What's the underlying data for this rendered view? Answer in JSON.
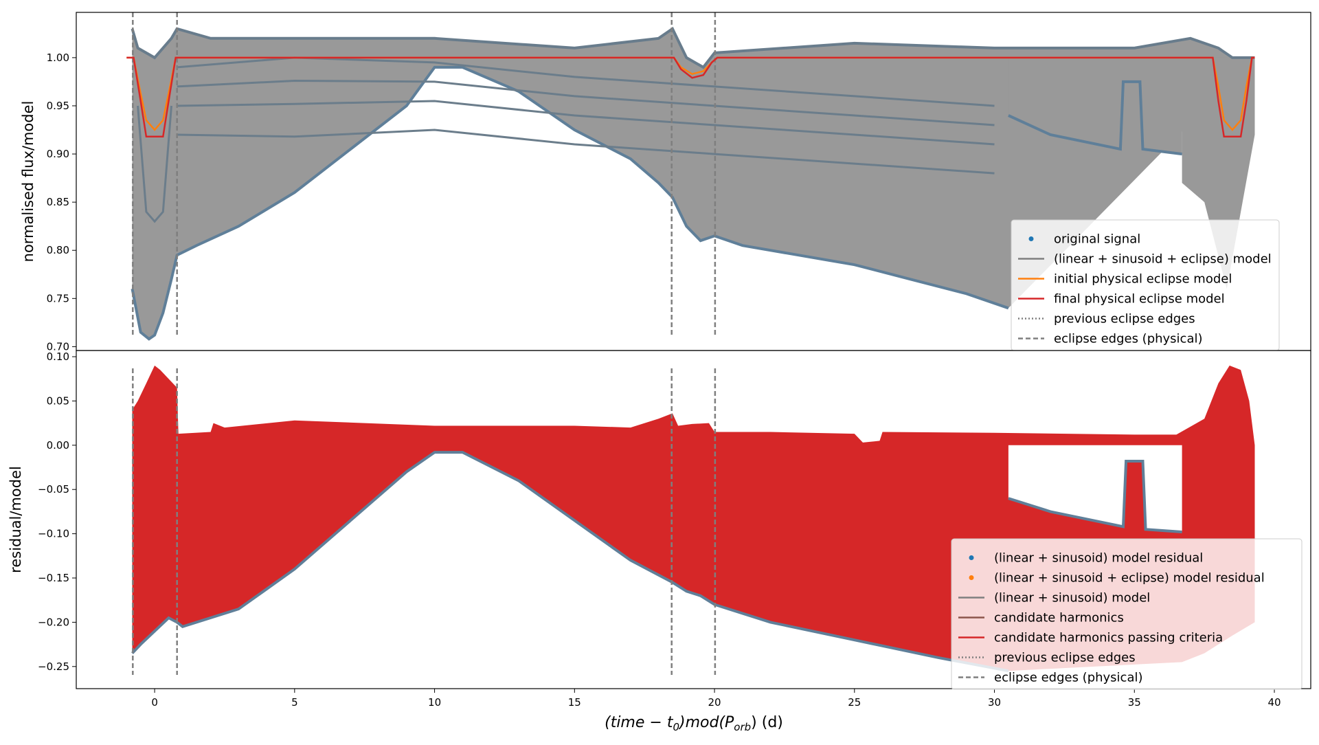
{
  "figure": {
    "xlabel_math": "(time − t",
    "xlabel_sub0": "0",
    "xlabel_mid": ")mod(P",
    "xlabel_sub1": "orb",
    "xlabel_tail": ") (d)"
  },
  "chart_data": [
    {
      "type": "line",
      "panel": "top",
      "ylabel": "normalised flux/model",
      "xlim": [
        -2.8,
        41.3
      ],
      "ylim": [
        0.696,
        1.047
      ],
      "xticks": [
        0,
        5,
        10,
        15,
        20,
        25,
        30,
        35,
        40
      ],
      "yticks": [
        0.7,
        0.75,
        0.8,
        0.85,
        0.9,
        0.95,
        1.0
      ],
      "ytick_labels": [
        "0.70",
        "0.75",
        "0.80",
        "0.85",
        "0.90",
        "0.95",
        "1.00"
      ],
      "legend_position": "lower right",
      "legend": [
        {
          "label": "original signal",
          "style": "dot",
          "color": "#1f77b4"
        },
        {
          "label": "(linear + sinusoid + eclipse) model",
          "style": "line",
          "color": "#7f7f7f"
        },
        {
          "label": "initial physical eclipse model",
          "style": "line",
          "color": "#ff7f0e"
        },
        {
          "label": "final physical eclipse model",
          "style": "line",
          "color": "#d62728"
        },
        {
          "label": "previous eclipse edges",
          "style": "dotted",
          "color": "#7f7f7f"
        },
        {
          "label": "eclipse edges (physical)",
          "style": "dashed",
          "color": "#7f7f7f"
        }
      ],
      "signal_lower_envelope": {
        "x": [
          -0.8,
          -0.5,
          -0.2,
          0.0,
          0.3,
          0.6,
          0.8,
          1.5,
          3.0,
          5.0,
          7.0,
          9.0,
          10.0,
          11.0,
          13.0,
          15.0,
          17.0,
          18.0,
          18.5,
          19.0,
          19.5,
          20.0,
          21.0,
          23.0,
          25.0,
          27.0,
          29.0,
          30.5
        ],
        "y": [
          0.76,
          0.715,
          0.708,
          0.712,
          0.735,
          0.77,
          0.795,
          0.805,
          0.825,
          0.86,
          0.905,
          0.95,
          0.99,
          0.99,
          0.965,
          0.925,
          0.895,
          0.87,
          0.855,
          0.825,
          0.81,
          0.815,
          0.805,
          0.795,
          0.785,
          0.77,
          0.755,
          0.74
        ]
      },
      "signal_lower_envelope_right": {
        "x": [
          30.5,
          32.0,
          34.5,
          34.6,
          35.2,
          35.3,
          36.7
        ],
        "y": [
          0.94,
          0.92,
          0.905,
          0.975,
          0.975,
          0.905,
          0.9
        ]
      },
      "signal_upper_envelope": {
        "x": [
          -0.8,
          -0.6,
          0.0,
          0.6,
          0.8,
          2.0,
          5.0,
          10.0,
          15.0,
          18.0,
          18.5,
          19.0,
          19.6,
          20.0,
          25.0,
          30.0,
          35.0,
          37.0,
          38.0,
          38.5,
          39.3
        ],
        "y": [
          1.03,
          1.01,
          1.0,
          1.02,
          1.03,
          1.02,
          1.02,
          1.02,
          1.01,
          1.02,
          1.03,
          1.0,
          0.99,
          1.005,
          1.015,
          1.01,
          1.01,
          1.02,
          1.01,
          1.0,
          1.0
        ]
      },
      "initial_eclipse_model": {
        "x": [
          -1.0,
          -0.75,
          -0.55,
          -0.3,
          0.0,
          0.3,
          0.55,
          0.75,
          1.0,
          18.4,
          18.55,
          18.8,
          19.2,
          19.6,
          19.9,
          20.1,
          37.6,
          37.8,
          38.0,
          38.2,
          38.5,
          38.8,
          39.0,
          39.2,
          39.3
        ],
        "y": [
          1.0,
          1.0,
          0.97,
          0.935,
          0.925,
          0.935,
          0.97,
          1.0,
          1.0,
          1.0,
          1.0,
          0.99,
          0.983,
          0.986,
          0.995,
          1.0,
          1.0,
          1.0,
          0.97,
          0.935,
          0.925,
          0.935,
          0.97,
          1.0,
          1.0
        ]
      },
      "final_eclipse_model": {
        "x": [
          -1.0,
          -0.75,
          -0.5,
          -0.3,
          0.0,
          0.3,
          0.5,
          0.75,
          1.0,
          18.4,
          18.55,
          18.8,
          19.2,
          19.6,
          19.9,
          20.1,
          37.6,
          37.8,
          38.0,
          38.2,
          38.5,
          38.8,
          39.0,
          39.2,
          39.3
        ],
        "y": [
          1.0,
          1.0,
          0.955,
          0.918,
          0.918,
          0.918,
          0.955,
          1.0,
          1.0,
          1.0,
          1.0,
          0.988,
          0.979,
          0.982,
          0.995,
          1.0,
          1.0,
          1.0,
          0.955,
          0.918,
          0.918,
          0.918,
          0.955,
          1.0,
          1.0
        ]
      },
      "eclipse_edges_physical": [
        -0.78,
        0.8,
        18.47,
        20.02
      ]
    },
    {
      "type": "line",
      "panel": "bottom",
      "ylabel": "residual/model",
      "xlim": [
        -2.8,
        41.3
      ],
      "ylim": [
        -0.275,
        0.107
      ],
      "xticks": [
        0,
        5,
        10,
        15,
        20,
        25,
        30,
        35,
        40
      ],
      "xtick_labels": [
        "0",
        "5",
        "10",
        "15",
        "20",
        "25",
        "30",
        "35",
        "40"
      ],
      "yticks": [
        -0.25,
        -0.2,
        -0.15,
        -0.1,
        -0.05,
        0.0,
        0.05,
        0.1
      ],
      "ytick_labels": [
        "−0.25",
        "−0.20",
        "−0.15",
        "−0.10",
        "−0.05",
        "0.00",
        "0.05",
        "0.10"
      ],
      "legend_position": "lower right",
      "legend": [
        {
          "label": "(linear + sinusoid) model residual",
          "style": "dot",
          "color": "#1f77b4"
        },
        {
          "label": "(linear + sinusoid + eclipse) model residual",
          "style": "dot",
          "color": "#ff7f0e"
        },
        {
          "label": "(linear + sinusoid) model",
          "style": "line",
          "color": "#7f7f7f"
        },
        {
          "label": "candidate harmonics",
          "style": "line",
          "color": "#8c564b"
        },
        {
          "label": "candidate harmonics passing criteria",
          "style": "line",
          "color": "#d62728"
        },
        {
          "label": "previous eclipse edges",
          "style": "dotted",
          "color": "#7f7f7f"
        },
        {
          "label": "eclipse edges (physical)",
          "style": "dashed",
          "color": "#7f7f7f"
        }
      ],
      "residual_upper_envelope": {
        "x": [
          -0.8,
          -0.6,
          -0.3,
          0.0,
          0.2,
          0.5,
          0.8,
          0.85,
          2.0,
          2.1,
          2.5,
          5.0,
          10.0,
          15.0,
          17.0,
          18.0,
          18.5,
          18.7,
          19.2,
          19.8,
          20.0,
          22.0,
          25.0,
          25.3,
          25.9,
          26.0,
          30.0,
          35.0,
          36.5,
          37.5,
          38.0,
          38.4,
          38.8,
          39.1,
          39.3
        ],
        "y": [
          0.04,
          0.05,
          0.07,
          0.09,
          0.085,
          0.075,
          0.065,
          0.013,
          0.015,
          0.025,
          0.02,
          0.028,
          0.022,
          0.022,
          0.02,
          0.03,
          0.036,
          0.022,
          0.024,
          0.025,
          0.015,
          0.015,
          0.013,
          0.003,
          0.005,
          0.015,
          0.014,
          0.012,
          0.012,
          0.03,
          0.07,
          0.09,
          0.085,
          0.05,
          0.0
        ]
      },
      "residual_lower_envelope": {
        "x": [
          -0.8,
          -0.5,
          0.0,
          0.5,
          0.8,
          1.0,
          3.0,
          5.0,
          7.0,
          9.0,
          10.0,
          11.0,
          13.0,
          15.0,
          17.0,
          18.5,
          19.0,
          19.5,
          20.0,
          22.0,
          25.0,
          28.0,
          30.5
        ],
        "y": [
          -0.235,
          -0.225,
          -0.21,
          -0.195,
          -0.2,
          -0.205,
          -0.185,
          -0.14,
          -0.085,
          -0.03,
          -0.008,
          -0.008,
          -0.04,
          -0.085,
          -0.13,
          -0.155,
          -0.165,
          -0.17,
          -0.18,
          -0.2,
          -0.22,
          -0.24,
          -0.255
        ]
      },
      "residual_lower_envelope_right": {
        "x": [
          30.5,
          32.0,
          34.6,
          34.7,
          35.3,
          35.4,
          36.7
        ],
        "y": [
          -0.06,
          -0.075,
          -0.092,
          -0.018,
          -0.018,
          -0.095,
          -0.098
        ]
      },
      "eclipse_edges_physical": [
        -0.78,
        0.8,
        18.47,
        20.02
      ]
    }
  ]
}
